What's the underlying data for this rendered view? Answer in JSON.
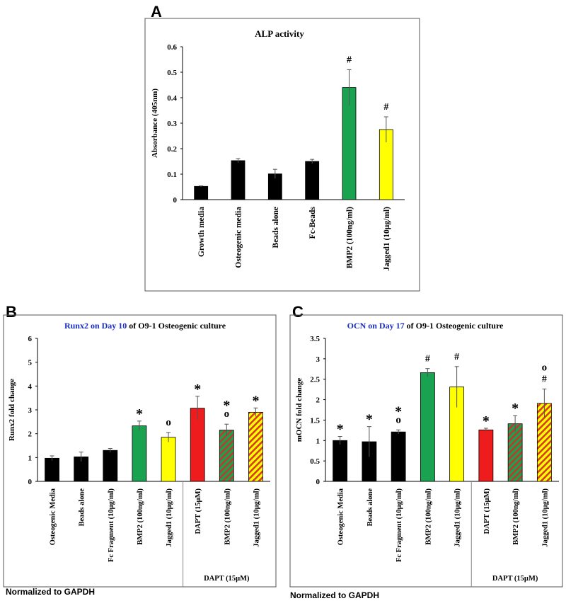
{
  "colors": {
    "black": "#000000",
    "green": "#19a24f",
    "yellow": "#ffff00",
    "red": "#ee1c1c",
    "blue_title": "#1a2fbf",
    "hatch_green_fg": "#c0392b",
    "hatch_yellow_fg": "#d63a2a",
    "frame": "#555555"
  },
  "chart_data": [
    {
      "panel_label": "A",
      "type": "bar",
      "title": "ALP activity",
      "ylabel": "Absorbance (405nm)",
      "xlabel": "",
      "ylim": [
        0,
        0.6
      ],
      "yticks": [
        "0",
        "0.1",
        "0.2",
        "0.3",
        "0.4",
        "0.5",
        "0.6"
      ],
      "categories": [
        "Growth media",
        "Osteogenic media",
        "Beads alone",
        "Fc-Beads",
        "BMP2 (100ng/ml)",
        "Jagged1 (10µg/ml)"
      ],
      "values": [
        0.052,
        0.153,
        0.101,
        0.15,
        0.44,
        0.275
      ],
      "errors": [
        0.002,
        0.008,
        0.018,
        0.008,
        0.07,
        0.05
      ],
      "fills": [
        "black",
        "black",
        "black",
        "black",
        "green",
        "yellow"
      ],
      "annotations": [
        "",
        "",
        "",
        "",
        "#",
        "#"
      ]
    },
    {
      "panel_label": "B",
      "type": "bar",
      "title_blue": "Runx2 on Day 10",
      "title_black": " of O9-1 Osteogenic culture",
      "ylabel": "Runx2 fold change",
      "xlabel": "",
      "ylim": [
        0,
        6
      ],
      "yticks": [
        "0",
        "1",
        "2",
        "3",
        "4",
        "5",
        "6"
      ],
      "categories": [
        "Osteogenic Media",
        "Beads alone",
        "Fc Fragment (10µg/ml)",
        "BMP2 (100ng/ml)",
        "Jagged1 (10µg/ml)",
        "DAPT (15µM)",
        "BMP2 (100ng/ml)",
        "Jagged1 (10µg/ml)"
      ],
      "values": [
        0.97,
        1.03,
        1.3,
        2.33,
        1.85,
        3.07,
        2.15,
        2.9
      ],
      "errors": [
        0.1,
        0.2,
        0.08,
        0.2,
        0.2,
        0.5,
        0.25,
        0.18
      ],
      "fills": [
        "black",
        "black",
        "black",
        "green",
        "yellow",
        "red",
        "hatch-green",
        "hatch-yellow"
      ],
      "annotations": [
        [],
        [],
        [],
        [
          "*"
        ],
        [
          "o"
        ],
        [
          "*"
        ],
        [
          "*",
          "o"
        ],
        [
          "*"
        ]
      ],
      "group_label": "DAPT (15µM)",
      "group_start": 5,
      "footnote": "Normalized to GAPDH"
    },
    {
      "panel_label": "C",
      "type": "bar",
      "title_blue": "OCN on Day 17",
      "title_black": " of O9-1 Osteogenic culture",
      "ylabel": "mOCN fold change",
      "xlabel": "",
      "ylim": [
        0,
        3.5
      ],
      "yticks": [
        "0",
        "0.5",
        "1",
        "1.5",
        "2",
        "2.5",
        "3",
        "3.5"
      ],
      "categories": [
        "Osteogenic Media",
        "Beads alone",
        "Fc Fragment (10µg/ml)",
        "BMP2 (100ng/ml)",
        "Jagged1 (10µg/ml)",
        "DAPT (15µM)",
        "BMP2 (100ng/ml)",
        "Jagged1 (10µg/ml)"
      ],
      "values": [
        1.0,
        0.97,
        1.21,
        2.66,
        2.31,
        1.26,
        1.41,
        1.91
      ],
      "errors": [
        0.1,
        0.37,
        0.05,
        0.1,
        0.5,
        0.04,
        0.2,
        0.35
      ],
      "fills": [
        "black",
        "black",
        "black",
        "green",
        "yellow",
        "red",
        "hatch-green",
        "hatch-yellow"
      ],
      "annotations": [
        [
          "*"
        ],
        [
          "*"
        ],
        [
          "*",
          "o"
        ],
        [
          "#"
        ],
        [
          "#"
        ],
        [
          "*"
        ],
        [
          "*"
        ],
        [
          "o",
          "#"
        ]
      ],
      "group_label": "DAPT (15µM)",
      "group_start": 5,
      "footnote": "Normalized to GAPDH"
    }
  ]
}
